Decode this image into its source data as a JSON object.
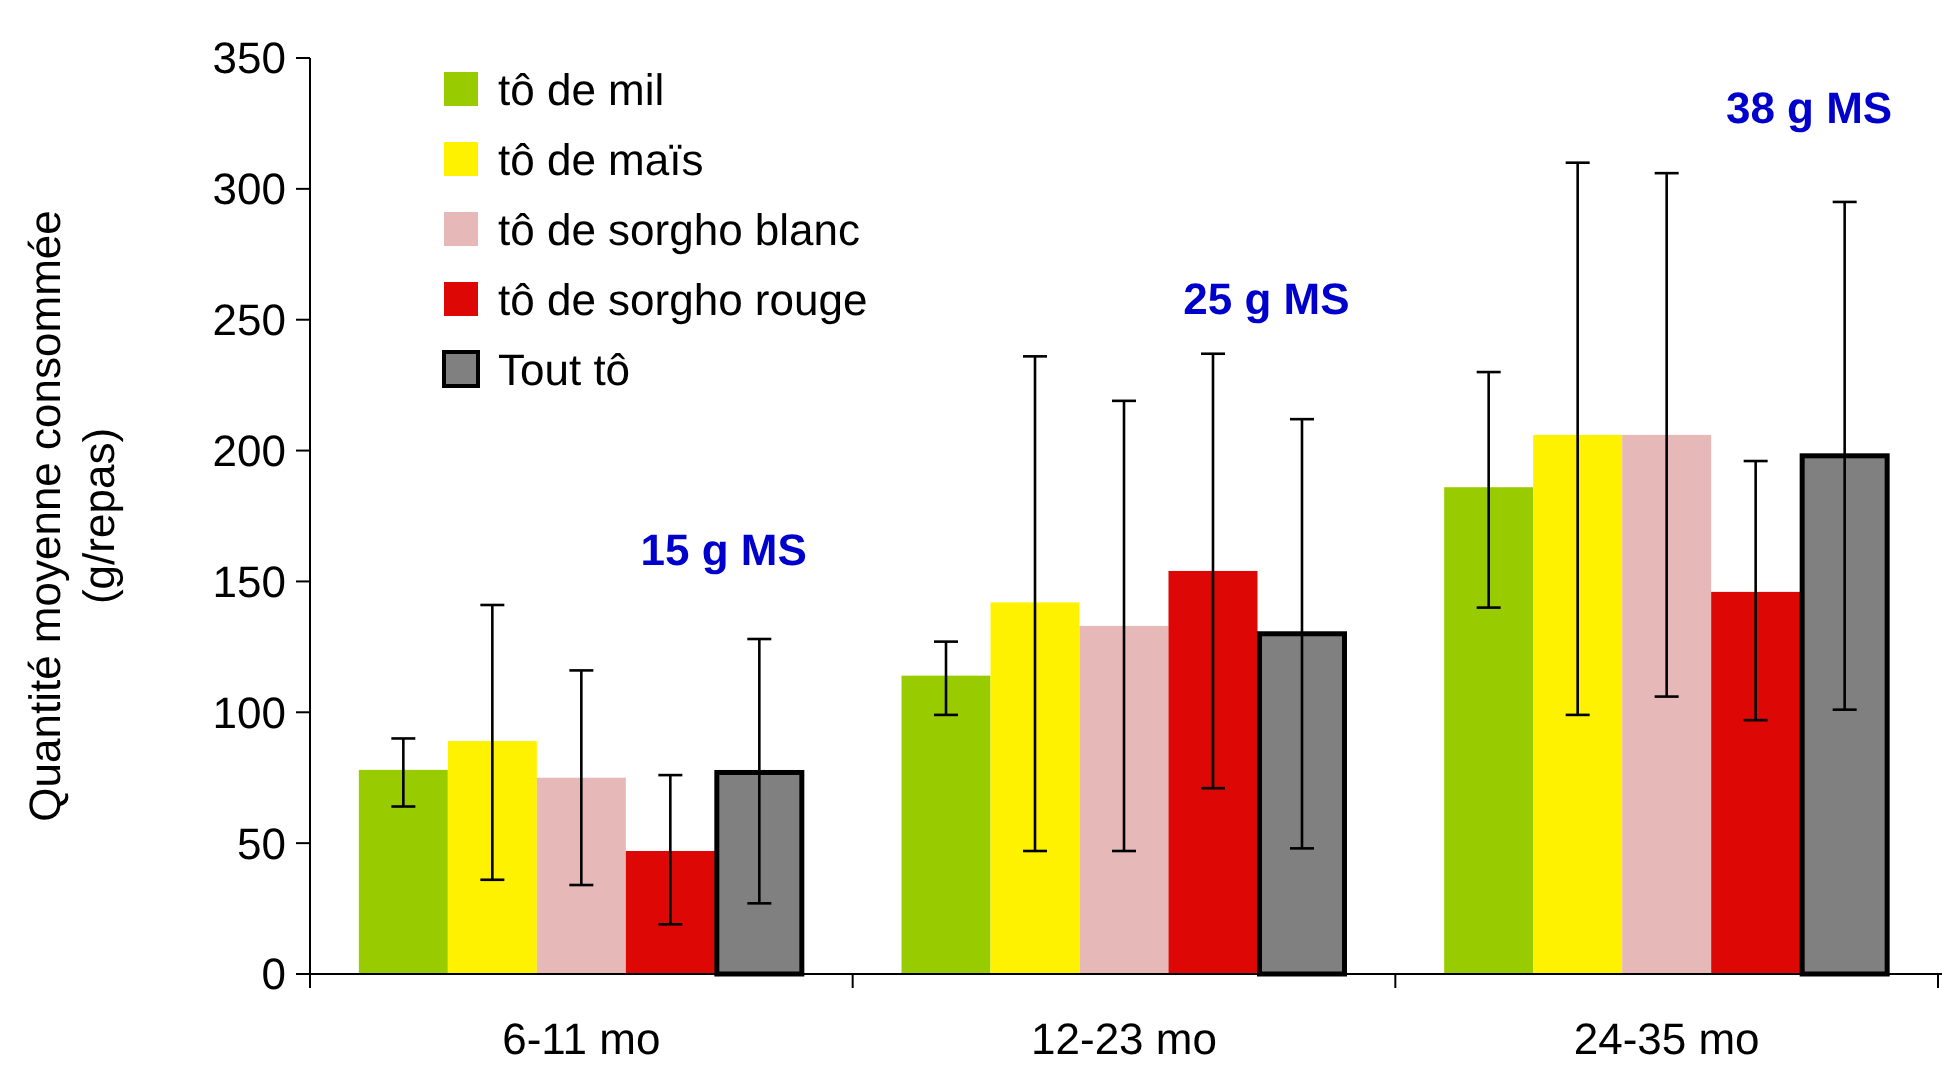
{
  "chart_data": {
    "type": "bar",
    "ylabel": "Quantité moyenne consommée\n(g/repas)",
    "categories": [
      "6-11 mo",
      "12-23 mo",
      "24-35 mo"
    ],
    "ylim": [
      0,
      350
    ],
    "yticks": [
      0,
      50,
      100,
      150,
      200,
      250,
      300,
      350
    ],
    "grid": false,
    "legend": "top left",
    "series": [
      {
        "name": "tô de mil",
        "color": "#99cc00",
        "values": [
          78,
          114,
          186
        ],
        "errors": [
          [
            64,
            90
          ],
          [
            99,
            127
          ],
          [
            140,
            230
          ]
        ]
      },
      {
        "name": "tô de maïs",
        "color": "#fff200",
        "values": [
          89,
          142,
          206
        ],
        "errors": [
          [
            36,
            141
          ],
          [
            47,
            236
          ],
          [
            99,
            310
          ]
        ]
      },
      {
        "name": "tô de sorgho blanc",
        "color": "#e6b8b7",
        "values": [
          75,
          133,
          206
        ],
        "errors": [
          [
            34,
            116
          ],
          [
            47,
            219
          ],
          [
            106,
            306
          ]
        ]
      },
      {
        "name": "tô de sorgho rouge",
        "color": "#dd0806",
        "values": [
          47,
          154,
          146
        ],
        "errors": [
          [
            19,
            76
          ],
          [
            71,
            237
          ],
          [
            97,
            196
          ]
        ]
      },
      {
        "name": "Tout tô",
        "color": "#808080",
        "values": [
          77,
          130,
          198
        ],
        "errors": [
          [
            27,
            128
          ],
          [
            48,
            212
          ],
          [
            101,
            295
          ]
        ]
      }
    ],
    "annotations": [
      "15 g MS",
      "25 g MS",
      "38 g MS"
    ]
  }
}
